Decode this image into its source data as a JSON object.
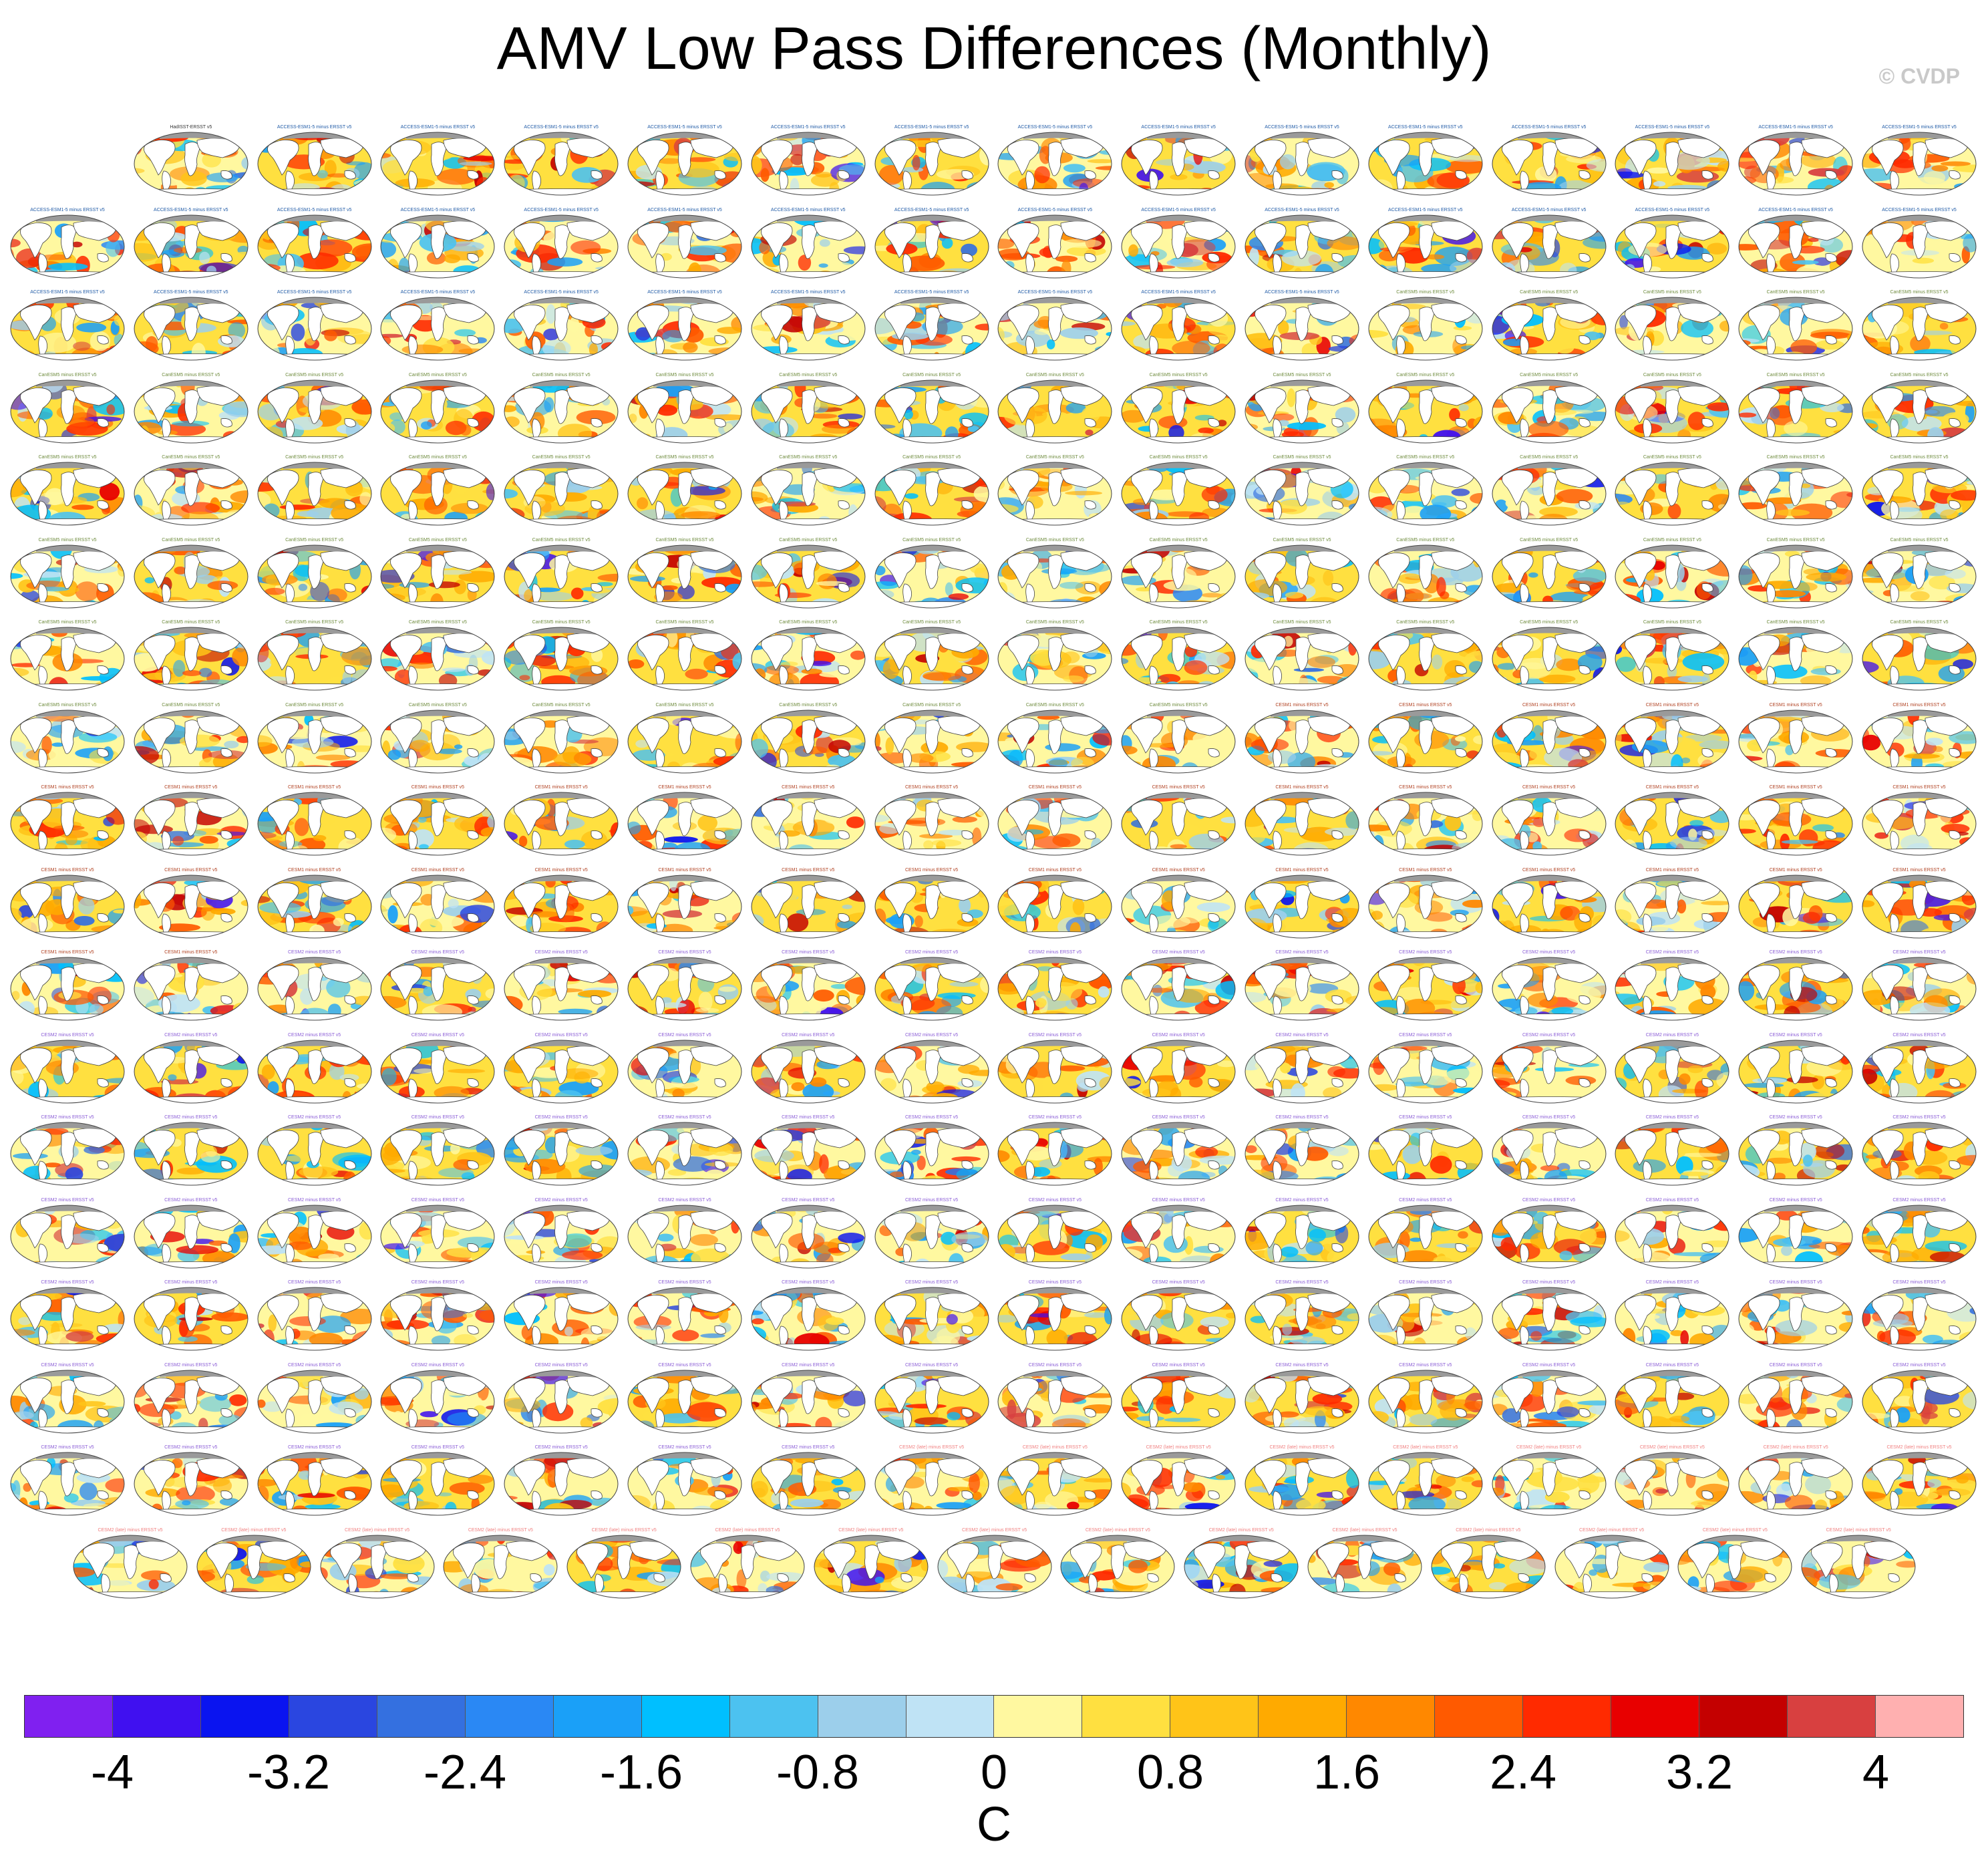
{
  "title": "AMV Low Pass Differences (Monthly)",
  "watermark": "© CVDP",
  "chart_data": {
    "type": "heatmap",
    "title": "AMV Low Pass Differences (Monthly)",
    "description_layout": "grid of global SST difference maps (model ensemble member minus observations)",
    "rows": [
      15,
      16,
      16,
      16,
      16,
      16,
      16,
      16,
      16,
      16,
      16,
      16,
      16,
      16,
      16,
      16,
      16,
      15
    ],
    "panel_label_color_groups": [
      {
        "label": "HadISST-ERSST v5",
        "color": "#333333",
        "count": 1
      },
      {
        "label": "ACCESS-ESM1-5 minus ERSST v5",
        "color": "#1f5aa6",
        "count": 41
      },
      {
        "label": "CanESM5 minus ERSST v5",
        "color": "#6e8b3d",
        "count": 79
      },
      {
        "label": "CESM1 minus ERSST v5",
        "color": "#b04020",
        "count": 40
      },
      {
        "label": "CESM2 minus ERSST v5",
        "color": "#8a5cd6",
        "count": 101
      },
      {
        "label": "CESM2 (late) minus ERSST v5",
        "color": "#f08080",
        "count": 16
      }
    ],
    "colorbar": {
      "units": "C",
      "levels": [
        -4,
        -3.6,
        -3.2,
        -2.8,
        -2.4,
        -2.0,
        -1.6,
        -1.2,
        -0.8,
        -0.4,
        0,
        0.4,
        0.8,
        1.2,
        1.6,
        2.0,
        2.4,
        2.8,
        3.2,
        3.6,
        4
      ],
      "tick_labels": [
        "-4",
        "-3.2",
        "-2.4",
        "-1.6",
        "-0.8",
        "0",
        "0.8",
        "1.6",
        "2.4",
        "3.2",
        "4"
      ],
      "colors": [
        "#8020f0",
        "#4010f0",
        "#0a14f0",
        "#2a46e0",
        "#3470e0",
        "#2a88f4",
        "#1aa0f8",
        "#00bfff",
        "#4cc2f0",
        "#9ccfeb",
        "#bfe3f5",
        "#fff8a0",
        "#ffe040",
        "#ffc418",
        "#ffaa00",
        "#ff8800",
        "#ff5a00",
        "#ff2a00",
        "#e80000",
        "#c40000",
        "#d84040",
        "#ffb0b0"
      ]
    }
  }
}
